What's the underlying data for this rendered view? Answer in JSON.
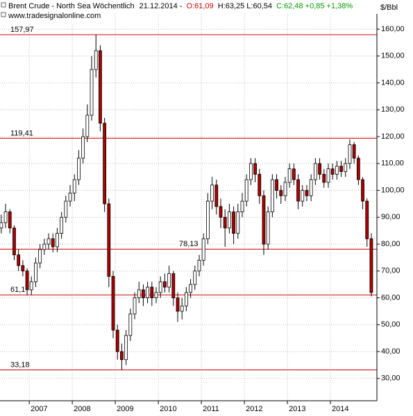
{
  "chart_data": {
    "type": "candlestick",
    "title": "Brent Crude - North Sea Wöchentlich",
    "date": "21.12.2014 -",
    "open_label": "O:61,09",
    "high_low_label": "H:63,25 L:60,54",
    "close_label": "C:62,48 +0,85 +1,38%",
    "subtitle": "www.tradesignalonline.com",
    "y_axis_label": "$/Bbl",
    "grid": true,
    "up_color": "#ffffff",
    "down_color": "#b00000",
    "level_color": "#cc0000",
    "x": [
      2006.35,
      2006.45,
      2006.55,
      2006.65,
      2006.75,
      2006.85,
      2006.95,
      2007.05,
      2007.15,
      2007.25,
      2007.35,
      2007.45,
      2007.55,
      2007.65,
      2007.75,
      2007.85,
      2007.95,
      2008.05,
      2008.15,
      2008.25,
      2008.35,
      2008.45,
      2008.55,
      2008.65,
      2008.75,
      2008.85,
      2008.95,
      2009.05,
      2009.15,
      2009.25,
      2009.35,
      2009.45,
      2009.55,
      2009.65,
      2009.75,
      2009.85,
      2009.95,
      2010.05,
      2010.15,
      2010.25,
      2010.35,
      2010.45,
      2010.55,
      2010.65,
      2010.75,
      2010.85,
      2010.95,
      2011.05,
      2011.15,
      2011.25,
      2011.35,
      2011.45,
      2011.55,
      2011.65,
      2011.75,
      2011.85,
      2011.95,
      2012.05,
      2012.15,
      2012.25,
      2012.35,
      2012.45,
      2012.55,
      2012.65,
      2012.75,
      2012.85,
      2012.95,
      2013.05,
      2013.15,
      2013.25,
      2013.35,
      2013.45,
      2013.55,
      2013.65,
      2013.75,
      2013.85,
      2013.95,
      2014.05,
      2014.15,
      2014.25,
      2014.35,
      2014.45,
      2014.55,
      2014.65,
      2014.75,
      2014.85,
      2014.95
    ],
    "open": [
      86,
      88,
      92,
      86,
      76,
      72,
      70,
      63,
      66,
      73,
      78,
      80,
      82,
      79,
      84,
      90,
      96,
      99,
      104,
      112,
      120,
      128,
      145,
      152,
      125,
      95,
      68,
      48,
      40,
      37,
      46,
      54,
      60,
      63,
      60,
      64,
      60,
      62,
      66,
      64,
      69,
      60,
      55,
      57,
      62,
      65,
      70,
      74,
      82,
      96,
      102,
      94,
      90,
      86,
      92,
      84,
      92,
      96,
      104,
      110,
      106,
      98,
      80,
      92,
      104,
      100,
      98,
      103,
      108,
      104,
      96,
      100,
      98,
      104,
      110,
      106,
      103,
      108,
      106,
      109,
      107,
      110,
      117,
      112,
      104,
      96,
      82
    ],
    "high": [
      91,
      95,
      93,
      87,
      78,
      74,
      71,
      68,
      75,
      80,
      82,
      84,
      84,
      86,
      92,
      98,
      102,
      106,
      115,
      123,
      132,
      150,
      157.97,
      154,
      127,
      97,
      70,
      50,
      43,
      48,
      56,
      62,
      66,
      65,
      66,
      66,
      64,
      68,
      69,
      72,
      70,
      62,
      60,
      64,
      67,
      72,
      76,
      84,
      99,
      105,
      104,
      97,
      93,
      95,
      94,
      95,
      99,
      106,
      112,
      112,
      108,
      100,
      94,
      106,
      106,
      102,
      105,
      110,
      110,
      106,
      102,
      102,
      106,
      112,
      112,
      108,
      110,
      110,
      111,
      111,
      112,
      119,
      118,
      113,
      105,
      97,
      84
    ],
    "low": [
      84,
      86,
      84,
      74,
      70,
      68,
      61,
      61,
      64,
      71,
      76,
      78,
      77,
      77,
      82,
      88,
      94,
      96,
      102,
      110,
      118,
      126,
      142,
      122,
      92,
      64,
      45,
      37,
      33.18,
      35,
      44,
      52,
      58,
      57,
      58,
      57,
      58,
      60,
      62,
      62,
      57,
      51,
      52,
      55,
      60,
      63,
      68,
      72,
      80,
      93,
      91,
      86,
      79,
      84,
      80,
      82,
      90,
      94,
      102,
      103,
      95,
      76,
      78,
      90,
      97,
      95,
      96,
      101,
      102,
      93,
      94,
      96,
      96,
      102,
      104,
      101,
      101,
      104,
      104,
      105,
      105,
      108,
      110,
      102,
      93,
      79,
      60.54
    ],
    "close": [
      88,
      92,
      86,
      76,
      72,
      70,
      63,
      66,
      73,
      78,
      80,
      82,
      79,
      84,
      90,
      96,
      99,
      104,
      112,
      120,
      128,
      145,
      152,
      125,
      95,
      68,
      48,
      40,
      37,
      46,
      54,
      60,
      63,
      60,
      64,
      60,
      62,
      66,
      64,
      69,
      60,
      55,
      57,
      62,
      65,
      70,
      74,
      82,
      96,
      102,
      94,
      90,
      86,
      92,
      84,
      92,
      96,
      104,
      110,
      106,
      98,
      80,
      92,
      104,
      100,
      98,
      103,
      108,
      104,
      96,
      100,
      98,
      104,
      110,
      106,
      103,
      108,
      106,
      109,
      107,
      110,
      117,
      112,
      104,
      96,
      82,
      62
    ],
    "xlim": [
      2006.32,
      2015.08
    ],
    "xticks": [
      2007,
      2008,
      2009,
      2010,
      2011,
      2012,
      2013,
      2014
    ],
    "ylim": [
      21.7,
      165.7
    ],
    "yticks": [
      {
        "value": 30,
        "label": "30,00"
      },
      {
        "value": 40,
        "label": "40,00"
      },
      {
        "value": 50,
        "label": "50,00"
      },
      {
        "value": 60,
        "label": "60,00"
      },
      {
        "value": 70,
        "label": "70,00"
      },
      {
        "value": 80,
        "label": "80,00"
      },
      {
        "value": 90,
        "label": "90,00"
      },
      {
        "value": 100,
        "label": "100,00"
      },
      {
        "value": 110,
        "label": "110,00"
      },
      {
        "value": 120,
        "label": "120,00"
      },
      {
        "value": 130,
        "label": "130,00"
      },
      {
        "value": 140,
        "label": "140,00"
      },
      {
        "value": 150,
        "label": "150,00"
      },
      {
        "value": 160,
        "label": "160,00"
      }
    ],
    "levels": [
      {
        "value": 157.97,
        "label": "157,97"
      },
      {
        "value": 119.41,
        "label": "119,41"
      },
      {
        "value": 78.13,
        "label": "78,13"
      },
      {
        "value": 61.1,
        "label": "61,1"
      },
      {
        "value": 33.18,
        "label": "33,18"
      }
    ]
  }
}
